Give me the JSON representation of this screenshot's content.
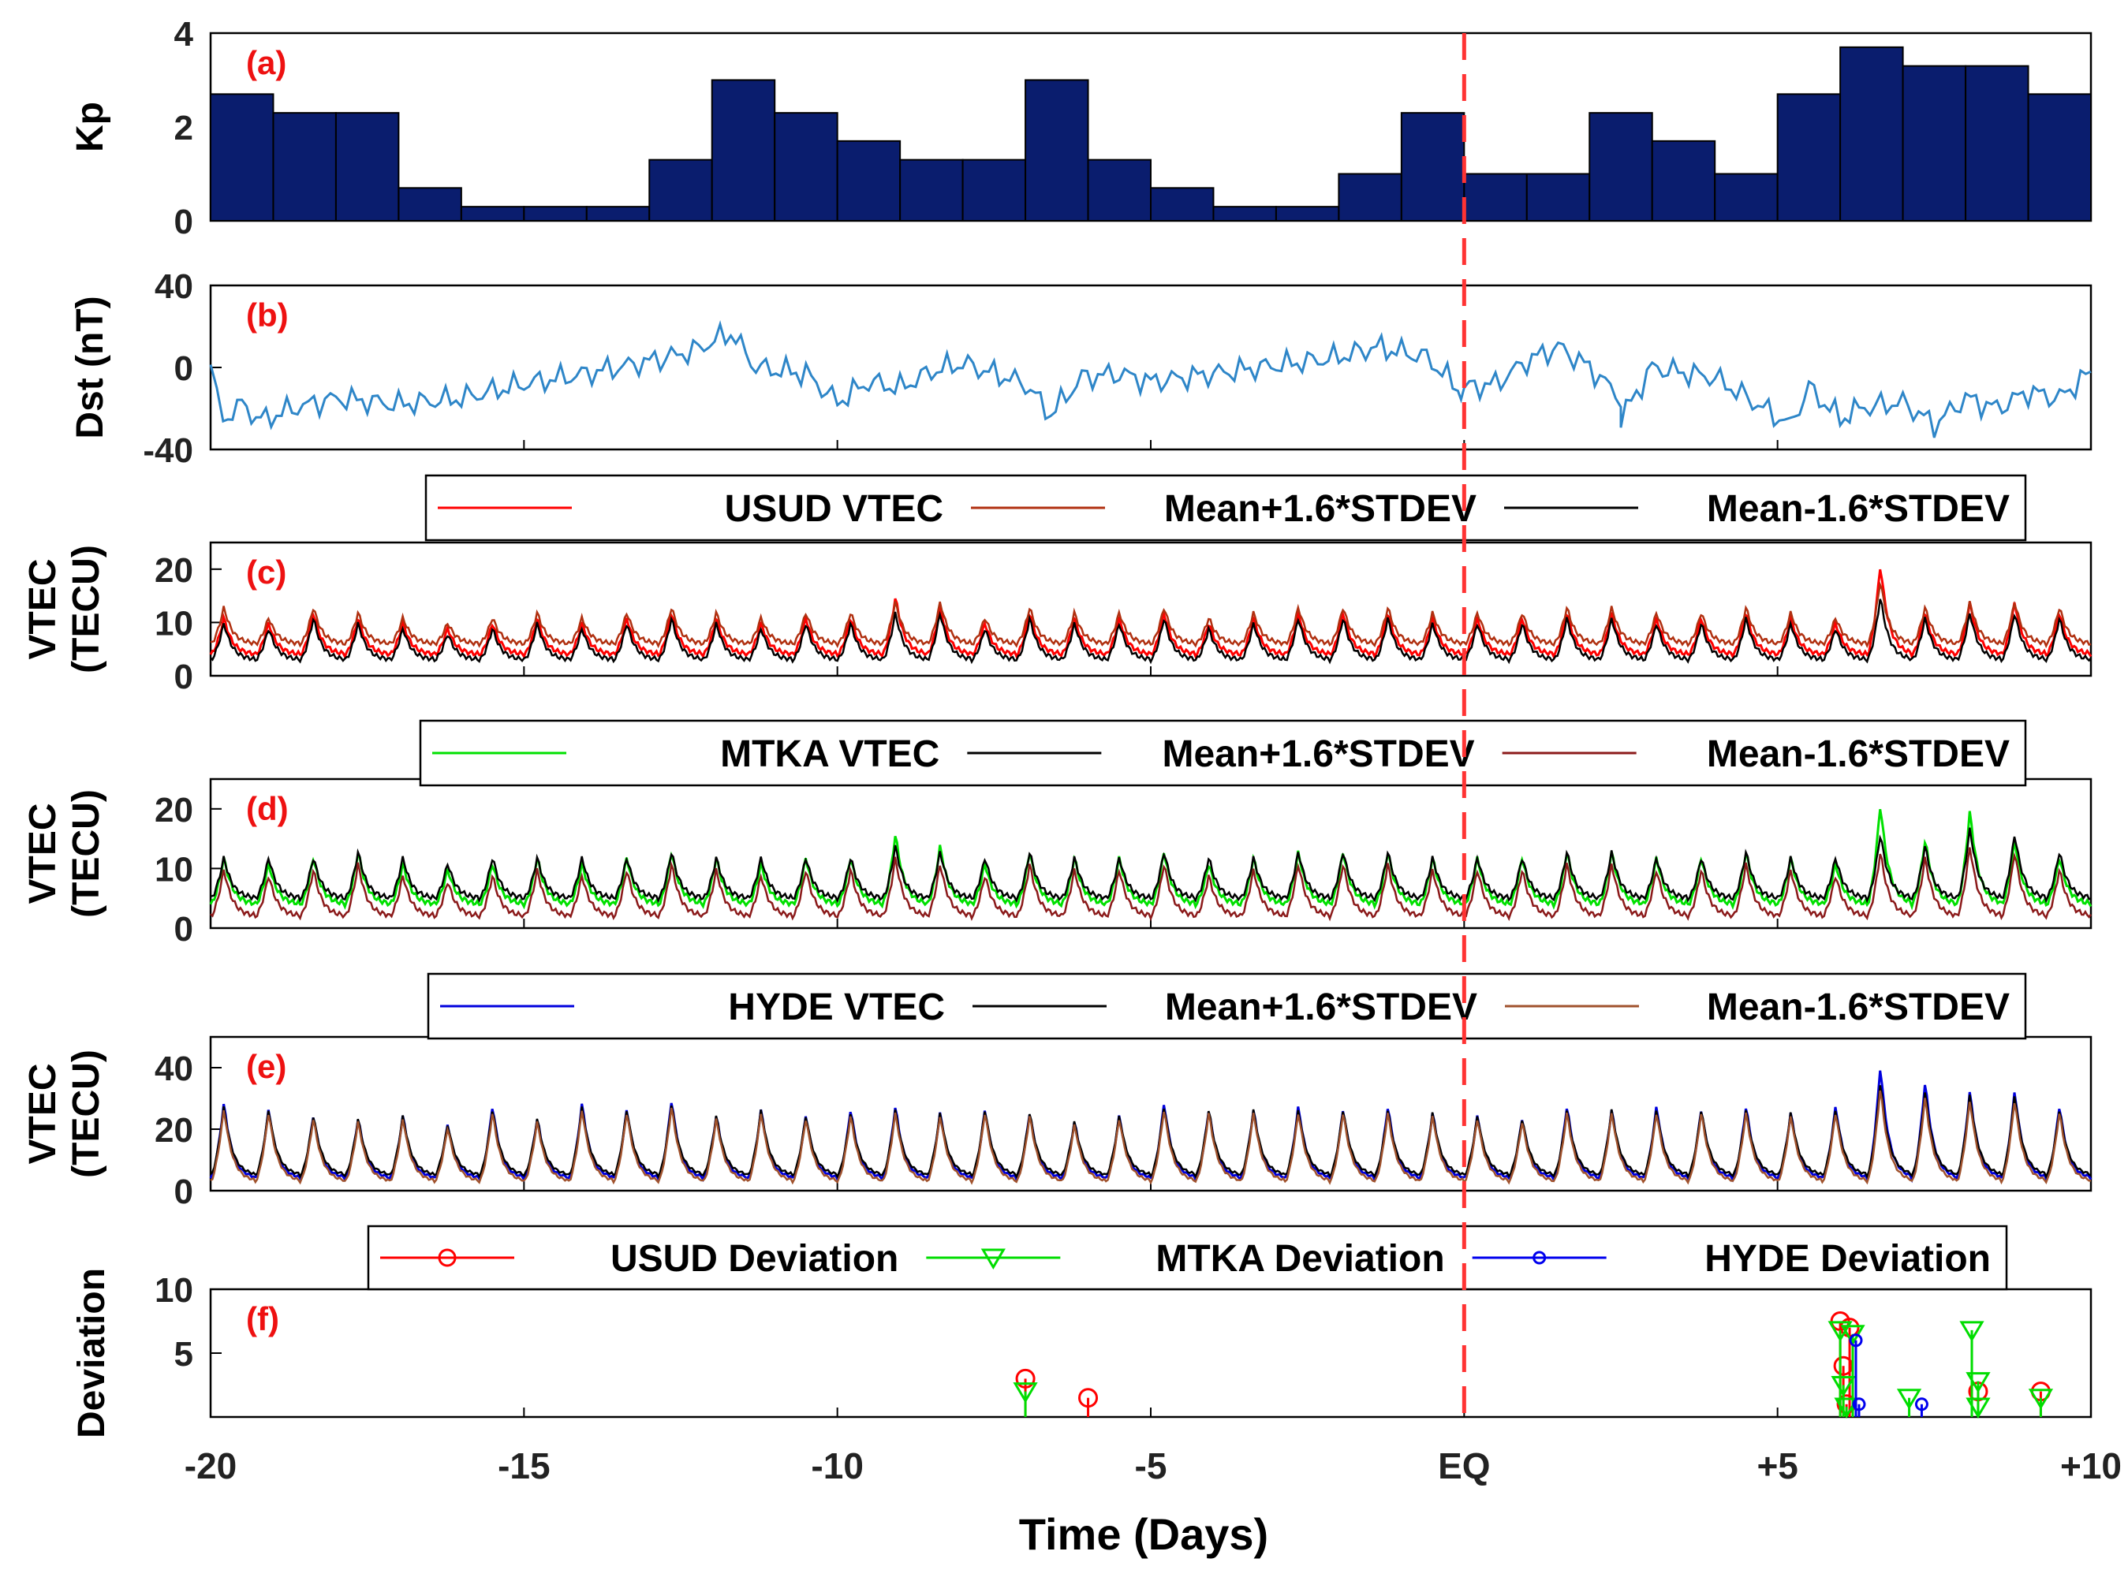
{
  "figure": {
    "x_axis_label": "Time (Days)"
  },
  "colors": {
    "kp_bar": "#0a1d6e",
    "dst": "#2e86c8",
    "eq_line": "#ff3333",
    "panel_letter": "#ee1111",
    "usud": "#ff0000",
    "usud_upper": "#b03010",
    "usud_lower": "#000000",
    "mtka": "#00e000",
    "mtka_upper": "#000000",
    "mtka_lower": "#8b1a1a",
    "hyde": "#0000dd",
    "hyde_upper": "#000000",
    "hyde_lower": "#a0522d",
    "dev_usud": "#ff0000",
    "dev_mtka": "#00dd00",
    "dev_hyde": "#0000ee"
  },
  "chart_data": [
    {
      "panel": "(a)",
      "type": "bar",
      "ylabel": "Kp",
      "ylim": [
        0,
        4
      ],
      "yticks": [
        0,
        2,
        4
      ],
      "xlim": [
        -20,
        10
      ],
      "bin_days": 1.0333,
      "values": [
        2.7,
        2.3,
        2.3,
        0.7,
        0.3,
        0.3,
        0.3,
        1.3,
        3.0,
        2.3,
        1.7,
        1.3,
        1.3,
        3.0,
        1.3,
        0.7,
        0.3,
        0.3,
        1.0,
        2.3,
        1.0,
        1.0,
        2.3,
        1.7,
        1.0,
        2.7,
        3.7,
        3.3,
        3.3,
        2.7
      ]
    },
    {
      "panel": "(b)",
      "type": "line",
      "ylabel": "Dst (nT)",
      "ylim": [
        -40,
        40
      ],
      "yticks": [
        -40,
        0,
        40
      ],
      "xlim": [
        -20,
        10
      ],
      "series": [
        {
          "name": "Dst",
          "x": [
            -20,
            -19.8,
            -19.5,
            -19.2,
            -18.7,
            -18,
            -17,
            -16,
            -15,
            -14,
            -13,
            -12.3,
            -11.7,
            -11.3,
            -10.5,
            -10,
            -9.5,
            -9,
            -8.5,
            -8,
            -7.5,
            -7,
            -6.6,
            -6.1,
            -5.5,
            -5,
            -4,
            -3,
            -2,
            -1.4,
            -0.6,
            -0.1,
            0,
            0.5,
            1,
            1.5,
            2,
            2.5,
            2.5,
            3,
            4,
            5.2,
            5.5,
            6,
            6.3,
            7,
            7.5,
            8,
            8.5,
            9,
            9.5,
            10
          ],
          "y": [
            0,
            -25,
            -18,
            -26,
            -20,
            -15,
            -18,
            -15,
            -8,
            -3,
            3,
            8,
            17,
            0,
            -3,
            -17,
            -7,
            -10,
            -2,
            2,
            -3,
            -8,
            -23,
            -5,
            -3,
            -7,
            -3,
            1,
            5,
            10,
            5,
            -10,
            -10,
            -8,
            3,
            10,
            0,
            -15,
            -25,
            0,
            -5,
            -28,
            -10,
            -25,
            -20,
            -17,
            -28,
            -15,
            -20,
            -12,
            -15,
            -2
          ]
        }
      ]
    },
    {
      "panel": "(c)",
      "type": "line",
      "ylabel": "VTEC (TECU)",
      "ylim": [
        0,
        25
      ],
      "yticks": [
        0,
        10,
        20
      ],
      "xlim": [
        -20,
        10
      ],
      "legend": [
        "USUD VTEC",
        "Mean+1.6*STDEV",
        "Mean-1.6*STDEV"
      ],
      "series": [
        {
          "name": "USUD VTEC",
          "daily_peaks": [
            11,
            10,
            12,
            11,
            10,
            9,
            10,
            11,
            10,
            11,
            12,
            11,
            10,
            11,
            11,
            15,
            13,
            10,
            12,
            11,
            11,
            12,
            10,
            11,
            12,
            12,
            12,
            11,
            11,
            11,
            12,
            12,
            11,
            11,
            12,
            11,
            10,
            21,
            12,
            14,
            14,
            12
          ],
          "daily_base": 4
        },
        {
          "name": "Mean+1.6*STDEV",
          "daily_peaks": [
            13,
            11,
            13,
            12,
            11,
            10,
            11,
            12,
            11,
            12,
            13,
            12,
            11,
            12,
            12,
            14,
            14,
            11,
            13,
            12,
            12,
            13,
            11,
            12,
            13,
            13,
            13,
            12,
            12,
            12,
            13,
            13,
            12,
            12,
            13,
            12,
            11,
            18,
            13,
            14,
            14,
            13
          ],
          "daily_base": 6
        },
        {
          "name": "Mean-1.6*STDEV",
          "daily_peaks": [
            10,
            9,
            11,
            10,
            9,
            8,
            9,
            10,
            9,
            10,
            11,
            10,
            9,
            10,
            10,
            12,
            12,
            9,
            11,
            10,
            10,
            11,
            9,
            10,
            11,
            11,
            11,
            10,
            10,
            10,
            11,
            11,
            10,
            10,
            11,
            10,
            9,
            15,
            11,
            12,
            12,
            11
          ],
          "daily_base": 3
        }
      ]
    },
    {
      "panel": "(d)",
      "type": "line",
      "ylabel": "VTEC (TECU)",
      "ylim": [
        0,
        25
      ],
      "yticks": [
        0,
        10,
        20
      ],
      "xlim": [
        -20,
        10
      ],
      "legend": [
        "MTKA VTEC",
        "Mean+1.6*STDEV",
        "Mean-1.6*STDEV"
      ],
      "series": [
        {
          "name": "MTKA VTEC",
          "daily_peaks": [
            12,
            11,
            12,
            13,
            11,
            10,
            11,
            12,
            11,
            12,
            13,
            12,
            11,
            12,
            12,
            16,
            14,
            11,
            13,
            12,
            12,
            13,
            11,
            12,
            13,
            13,
            13,
            12,
            12,
            12,
            13,
            13,
            12,
            12,
            13,
            12,
            11,
            21,
            15,
            20,
            15,
            12
          ],
          "daily_base": 4
        },
        {
          "name": "Mean+1.6*STDEV",
          "daily_peaks": [
            12,
            12,
            12,
            13,
            12,
            11,
            12,
            12,
            12,
            12,
            13,
            12,
            12,
            12,
            12,
            14,
            13,
            12,
            13,
            12,
            12,
            13,
            12,
            12,
            13,
            13,
            13,
            12,
            12,
            12,
            13,
            13,
            12,
            12,
            13,
            12,
            12,
            16,
            14,
            17,
            16,
            13
          ],
          "daily_base": 5
        },
        {
          "name": "Mean-1.6*STDEV",
          "daily_peaks": [
            10,
            9,
            10,
            11,
            9,
            8,
            9,
            10,
            9,
            10,
            11,
            10,
            9,
            10,
            10,
            12,
            11,
            9,
            11,
            10,
            10,
            11,
            9,
            10,
            11,
            11,
            11,
            10,
            10,
            10,
            11,
            11,
            10,
            10,
            11,
            10,
            9,
            13,
            12,
            14,
            13,
            10
          ],
          "daily_base": 2
        }
      ]
    },
    {
      "panel": "(e)",
      "type": "line",
      "ylabel": "VTEC (TECU)",
      "ylim": [
        0,
        50
      ],
      "yticks": [
        0,
        20,
        40
      ],
      "xlim": [
        -20,
        10
      ],
      "legend": [
        "HYDE VTEC",
        "Mean+1.6*STDEV",
        "Mean-1.6*STDEV"
      ],
      "series": [
        {
          "name": "HYDE VTEC",
          "daily_peaks": [
            29,
            27,
            25,
            24,
            25,
            22,
            28,
            24,
            29,
            27,
            30,
            25,
            27,
            25,
            27,
            28,
            26,
            27,
            26,
            23,
            25,
            29,
            27,
            27,
            28,
            27,
            28,
            26,
            25,
            24,
            28,
            27,
            28,
            27,
            28,
            26,
            28,
            41,
            36,
            33,
            33,
            28
          ],
          "daily_base": 4
        },
        {
          "name": "Mean+1.6*STDEV",
          "daily_peaks": [
            28,
            27,
            25,
            24,
            25,
            22,
            27,
            24,
            28,
            27,
            29,
            25,
            27,
            25,
            26,
            27,
            26,
            27,
            26,
            23,
            25,
            28,
            27,
            27,
            27,
            27,
            27,
            26,
            25,
            24,
            27,
            27,
            27,
            27,
            27,
            26,
            27,
            36,
            33,
            32,
            32,
            27
          ],
          "daily_base": 5
        },
        {
          "name": "Mean-1.6*STDEV",
          "daily_peaks": [
            27,
            26,
            24,
            23,
            24,
            21,
            26,
            23,
            27,
            26,
            28,
            24,
            26,
            24,
            25,
            26,
            25,
            26,
            25,
            22,
            24,
            27,
            26,
            26,
            26,
            26,
            26,
            25,
            24,
            23,
            26,
            26,
            26,
            26,
            26,
            25,
            26,
            34,
            31,
            30,
            30,
            26
          ],
          "daily_base": 3
        }
      ]
    },
    {
      "panel": "(f)",
      "type": "scatter",
      "ylabel": "Deviation",
      "ylim": [
        0,
        10
      ],
      "yticks": [
        5,
        10
      ],
      "xlim": [
        -20,
        10
      ],
      "xticks": [
        -20,
        -15,
        -10,
        -5,
        0,
        5,
        10
      ],
      "xticklabels": [
        "-20",
        "-15",
        "-10",
        "-5",
        "EQ",
        "+5",
        "+10"
      ],
      "legend": [
        "USUD Deviation",
        "MTKA Deviation",
        "HYDE Deviation"
      ],
      "series": [
        {
          "name": "USUD Deviation",
          "marker": "o",
          "x": [
            -7,
            -6,
            6,
            6.05,
            6.1,
            6.15,
            8.2,
            9.2
          ],
          "y": [
            3.0,
            1.5,
            7.5,
            4.0,
            1.0,
            7.0,
            2.0,
            2.0
          ]
        },
        {
          "name": "MTKA Deviation",
          "marker": "v",
          "x": [
            -7,
            6,
            6.05,
            6.1,
            6.2,
            7.1,
            8.1,
            8.2,
            8.2,
            9.2
          ],
          "y": [
            2.0,
            6.8,
            2.5,
            0.8,
            6.5,
            1.5,
            6.8,
            2.8,
            0.8,
            1.5
          ]
        },
        {
          "name": "HYDE Deviation",
          "marker": "o-small",
          "x": [
            6.25,
            6.3,
            7.3
          ],
          "y": [
            6.0,
            1.0,
            1.0
          ]
        }
      ]
    }
  ]
}
